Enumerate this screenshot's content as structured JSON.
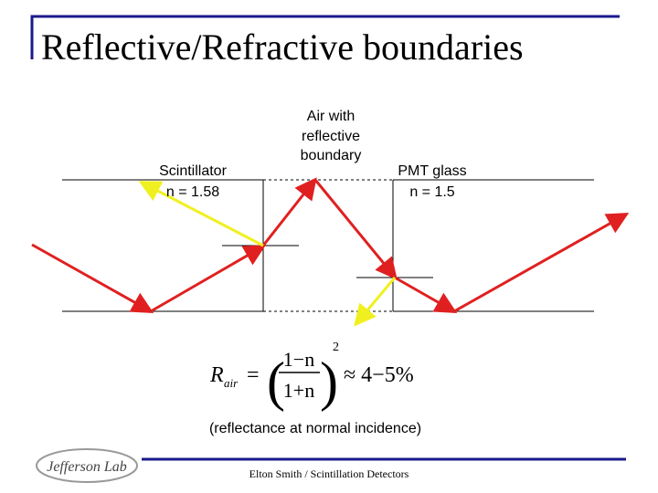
{
  "header": {
    "title": "Reflective/Refractive boundaries"
  },
  "labels": {
    "scintillator": [
      "Scintillator",
      "n = 1.58"
    ],
    "air": [
      "Air with",
      "reflective",
      "boundary"
    ],
    "pmt": [
      "PMT glass",
      "n = 1.5"
    ]
  },
  "formula": {
    "lhs": "R",
    "lhs_sub": "air",
    "equals": "=",
    "numerator": "1−n",
    "denominator": "1+n",
    "exponent": "2",
    "approx": "≈ 4−5%"
  },
  "caption": "(reflectance at normal incidence)",
  "footer": {
    "text": "Elton Smith / Scintillation Detectors",
    "logo": "Jefferson Lab"
  }
}
